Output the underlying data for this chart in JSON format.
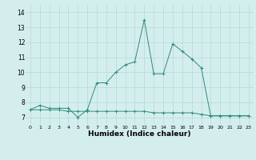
{
  "x": [
    0,
    1,
    2,
    3,
    4,
    5,
    6,
    7,
    8,
    9,
    10,
    11,
    12,
    13,
    14,
    15,
    16,
    17,
    18,
    19,
    20,
    21,
    22,
    23
  ],
  "line1": [
    7.5,
    7.8,
    7.6,
    7.6,
    7.6,
    7.0,
    7.5,
    9.3,
    9.3,
    10.0,
    10.5,
    10.7,
    13.5,
    9.9,
    9.9,
    11.9,
    11.4,
    10.9,
    10.3,
    7.1,
    7.1,
    7.1,
    7.1,
    7.1
  ],
  "line2": [
    7.5,
    7.5,
    7.5,
    7.5,
    7.4,
    7.4,
    7.4,
    7.4,
    7.4,
    7.4,
    7.4,
    7.4,
    7.4,
    7.3,
    7.3,
    7.3,
    7.3,
    7.3,
    7.2,
    7.1,
    7.1,
    7.1,
    7.1,
    7.1
  ],
  "line_color": "#2e8b7a",
  "bg_color": "#d4eeee",
  "grid_color": "#b8d8d8",
  "xlabel": "Humidex (Indice chaleur)",
  "ylim": [
    6.5,
    14.5
  ],
  "xlim": [
    -0.5,
    23.5
  ],
  "yticks": [
    7,
    8,
    9,
    10,
    11,
    12,
    13,
    14
  ],
  "xtick_labels": [
    "0",
    "1",
    "2",
    "3",
    "4",
    "5",
    "6",
    "7",
    "8",
    "9",
    "10",
    "11",
    "12",
    "13",
    "14",
    "15",
    "16",
    "17",
    "18",
    "19",
    "20",
    "21",
    "22",
    "23"
  ],
  "marker": "+"
}
